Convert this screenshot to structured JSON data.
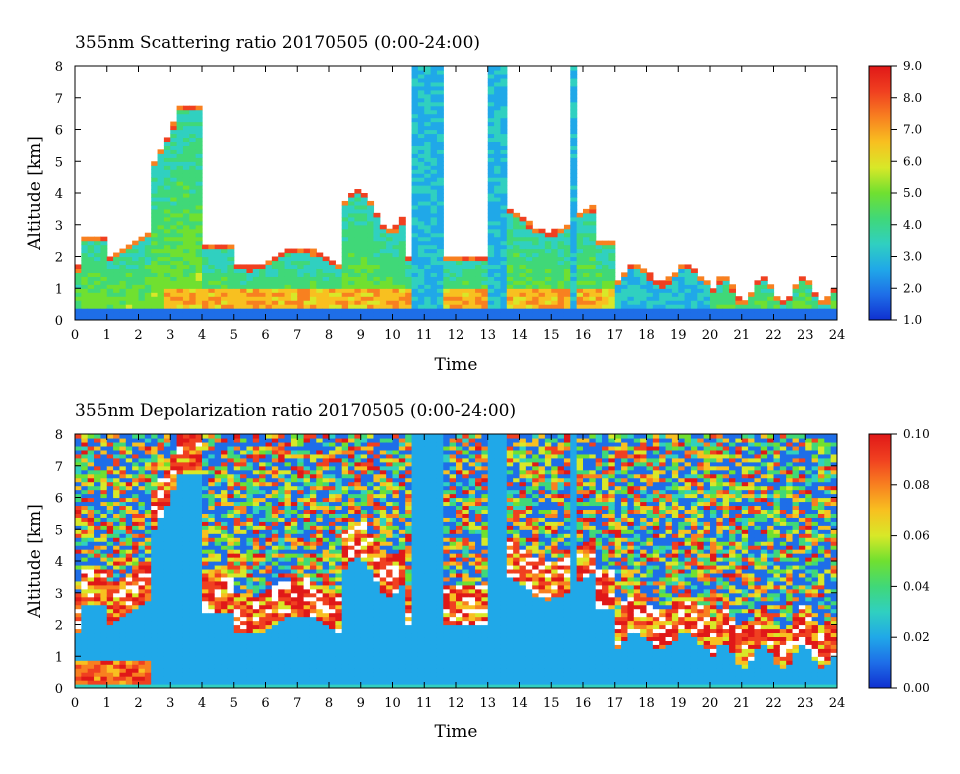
{
  "chart_data": [
    {
      "type": "heatmap",
      "title": "355nm Scattering ratio  20170505 (0:00-24:00)",
      "xlabel": "Time",
      "ylabel": "Altitude [km]",
      "xlim": [
        0,
        24
      ],
      "ylim": [
        0,
        8
      ],
      "x_ticks": [
        "0",
        "1",
        "2",
        "3",
        "4",
        "5",
        "6",
        "7",
        "8",
        "9",
        "10",
        "11",
        "12",
        "13",
        "14",
        "15",
        "16",
        "17",
        "18",
        "19",
        "20",
        "21",
        "22",
        "23",
        "24"
      ],
      "y_ticks": [
        "0",
        "1",
        "2",
        "3",
        "4",
        "5",
        "6",
        "7",
        "8"
      ],
      "colorbar": {
        "min": 1.0,
        "max": 9.0,
        "ticks": [
          "1.0",
          "2.0",
          "3.0",
          "4.0",
          "5.0",
          "6.0",
          "7.0",
          "8.0",
          "9.0"
        ]
      }
    },
    {
      "type": "heatmap",
      "title": "355nm Depolarization ratio  20170505 (0:00-24:00)",
      "xlabel": "Time",
      "ylabel": "Altitude [km]",
      "xlim": [
        0,
        24
      ],
      "ylim": [
        0,
        8
      ],
      "x_ticks": [
        "0",
        "1",
        "2",
        "3",
        "4",
        "5",
        "6",
        "7",
        "8",
        "9",
        "10",
        "11",
        "12",
        "13",
        "14",
        "15",
        "16",
        "17",
        "18",
        "19",
        "20",
        "21",
        "22",
        "23",
        "24"
      ],
      "y_ticks": [
        "0",
        "1",
        "2",
        "3",
        "4",
        "5",
        "6",
        "7",
        "8"
      ],
      "colorbar": {
        "min": 0.0,
        "max": 0.1,
        "ticks": [
          "0.00",
          "0.02",
          "0.04",
          "0.06",
          "0.08",
          "0.10"
        ]
      }
    }
  ],
  "colors": {
    "scale": [
      "#1030d0",
      "#1e6ee8",
      "#20a8e8",
      "#30d0c0",
      "#40d878",
      "#70e030",
      "#d8e828",
      "#f8c020",
      "#f88020",
      "#f04020",
      "#e01818"
    ]
  }
}
